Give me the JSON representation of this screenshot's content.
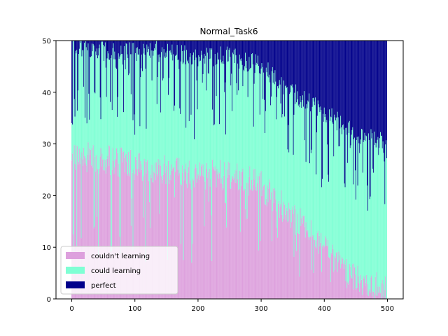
{
  "chart_data": {
    "type": "bar",
    "stacked": true,
    "title": "Normal_Task6",
    "xlabel": "",
    "ylabel": "",
    "xlim": [
      -25,
      525
    ],
    "ylim": [
      0,
      50
    ],
    "xticks": [
      0,
      100,
      200,
      300,
      400,
      500
    ],
    "yticks": [
      0,
      10,
      20,
      30,
      40,
      50
    ],
    "legend_position": "lower-left",
    "grid": false,
    "bar_count": 500,
    "bar_width": 1,
    "stack_total": 50,
    "series": [
      {
        "name": "couldn't learning",
        "color": "#dda0dd"
      },
      {
        "name": "could learning",
        "color": "#7fffd4"
      },
      {
        "name": "perfect",
        "color": "#00008b"
      }
    ],
    "profile_note_values": {
      "couldnt_learning_typical_by_x": [
        {
          "x": 0,
          "value": 28
        },
        {
          "x": 50,
          "value": 27
        },
        {
          "x": 100,
          "value": 26
        },
        {
          "x": 150,
          "value": 25
        },
        {
          "x": 200,
          "value": 24
        },
        {
          "x": 250,
          "value": 24
        },
        {
          "x": 300,
          "value": 22
        },
        {
          "x": 350,
          "value": 16
        },
        {
          "x": 400,
          "value": 10
        },
        {
          "x": 450,
          "value": 4
        },
        {
          "x": 500,
          "value": 2
        }
      ],
      "perfect_typical_by_x": [
        {
          "x": 0,
          "value": 1
        },
        {
          "x": 50,
          "value": 2
        },
        {
          "x": 100,
          "value": 2
        },
        {
          "x": 150,
          "value": 2
        },
        {
          "x": 200,
          "value": 3
        },
        {
          "x": 250,
          "value": 3
        },
        {
          "x": 300,
          "value": 5
        },
        {
          "x": 350,
          "value": 10
        },
        {
          "x": 400,
          "value": 14
        },
        {
          "x": 450,
          "value": 18
        },
        {
          "x": 500,
          "value": 20
        }
      ]
    }
  }
}
